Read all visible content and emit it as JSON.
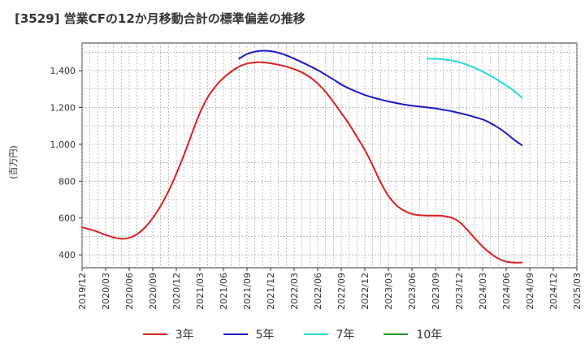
{
  "title": "[3529]  営業CFの12か月移動合計の標準偏差の推移",
  "chart_data": {
    "type": "line",
    "title": "[3529]  営業CFの12か月移動合計の標準偏差の推移",
    "ylabel": "(百万円)",
    "xlabel": "",
    "ylim": [
      330,
      1550
    ],
    "yticks": [
      400,
      600,
      800,
      1000,
      1200,
      1400
    ],
    "ytick_labels": [
      "400",
      "600",
      "800",
      "1,000",
      "1,200",
      "1,400"
    ],
    "xticks": [
      "2019/12",
      "2020/03",
      "2020/06",
      "2020/09",
      "2020/12",
      "2021/03",
      "2021/06",
      "2021/09",
      "2021/12",
      "2022/03",
      "2022/06",
      "2022/09",
      "2022/12",
      "2023/03",
      "2023/06",
      "2023/09",
      "2023/12",
      "2024/03",
      "2024/06",
      "2024/09",
      "2024/12",
      "2025/03"
    ],
    "x_range": [
      "2019/12",
      "2025/03"
    ],
    "grid": true,
    "legend_position": "bottom",
    "series": [
      {
        "name": "3年",
        "color": "#dd1f1f",
        "points": [
          [
            "2019/12",
            550
          ],
          [
            "2020/01",
            538
          ],
          [
            "2020/02",
            525
          ],
          [
            "2020/03",
            508
          ],
          [
            "2020/04",
            495
          ],
          [
            "2020/05",
            487
          ],
          [
            "2020/06",
            492
          ],
          [
            "2020/07",
            512
          ],
          [
            "2020/08",
            548
          ],
          [
            "2020/09",
            600
          ],
          [
            "2020/10",
            665
          ],
          [
            "2020/11",
            745
          ],
          [
            "2020/12",
            840
          ],
          [
            "2021/01",
            945
          ],
          [
            "2021/02",
            1060
          ],
          [
            "2021/03",
            1170
          ],
          [
            "2021/04",
            1255
          ],
          [
            "2021/05",
            1315
          ],
          [
            "2021/06",
            1360
          ],
          [
            "2021/07",
            1395
          ],
          [
            "2021/08",
            1422
          ],
          [
            "2021/09",
            1438
          ],
          [
            "2021/10",
            1445
          ],
          [
            "2021/11",
            1445
          ],
          [
            "2021/12",
            1440
          ],
          [
            "2022/01",
            1432
          ],
          [
            "2022/02",
            1422
          ],
          [
            "2022/03",
            1408
          ],
          [
            "2022/04",
            1390
          ],
          [
            "2022/05",
            1365
          ],
          [
            "2022/06",
            1330
          ],
          [
            "2022/07",
            1285
          ],
          [
            "2022/08",
            1230
          ],
          [
            "2022/09",
            1170
          ],
          [
            "2022/10",
            1110
          ],
          [
            "2022/11",
            1040
          ],
          [
            "2022/12",
            970
          ],
          [
            "2023/01",
            885
          ],
          [
            "2023/02",
            795
          ],
          [
            "2023/03",
            720
          ],
          [
            "2023/04",
            670
          ],
          [
            "2023/05",
            640
          ],
          [
            "2023/06",
            622
          ],
          [
            "2023/07",
            615
          ],
          [
            "2023/08",
            613
          ],
          [
            "2023/09",
            613
          ],
          [
            "2023/10",
            611
          ],
          [
            "2023/11",
            602
          ],
          [
            "2023/12",
            580
          ],
          [
            "2024/01",
            538
          ],
          [
            "2024/02",
            490
          ],
          [
            "2024/03",
            445
          ],
          [
            "2024/04",
            408
          ],
          [
            "2024/05",
            380
          ],
          [
            "2024/06",
            363
          ],
          [
            "2024/07",
            358
          ],
          [
            "2024/08",
            358
          ]
        ]
      },
      {
        "name": "5年",
        "color": "#1a1ac8",
        "points": [
          [
            "2021/08",
            1465
          ],
          [
            "2021/09",
            1490
          ],
          [
            "2021/10",
            1503
          ],
          [
            "2021/11",
            1508
          ],
          [
            "2021/12",
            1506
          ],
          [
            "2022/01",
            1497
          ],
          [
            "2022/02",
            1483
          ],
          [
            "2022/03",
            1465
          ],
          [
            "2022/04",
            1445
          ],
          [
            "2022/05",
            1425
          ],
          [
            "2022/06",
            1403
          ],
          [
            "2022/07",
            1378
          ],
          [
            "2022/08",
            1352
          ],
          [
            "2022/09",
            1325
          ],
          [
            "2022/10",
            1303
          ],
          [
            "2022/11",
            1285
          ],
          [
            "2022/12",
            1268
          ],
          [
            "2023/01",
            1255
          ],
          [
            "2023/02",
            1243
          ],
          [
            "2023/03",
            1233
          ],
          [
            "2023/04",
            1224
          ],
          [
            "2023/05",
            1216
          ],
          [
            "2023/06",
            1210
          ],
          [
            "2023/07",
            1205
          ],
          [
            "2023/08",
            1200
          ],
          [
            "2023/09",
            1195
          ],
          [
            "2023/10",
            1187
          ],
          [
            "2023/11",
            1180
          ],
          [
            "2023/12",
            1170
          ],
          [
            "2024/01",
            1160
          ],
          [
            "2024/02",
            1148
          ],
          [
            "2024/03",
            1135
          ],
          [
            "2024/04",
            1115
          ],
          [
            "2024/05",
            1090
          ],
          [
            "2024/06",
            1060
          ],
          [
            "2024/07",
            1025
          ],
          [
            "2024/08",
            995
          ]
        ]
      },
      {
        "name": "7年",
        "color": "#22dcdc",
        "points": [
          [
            "2023/08",
            1465
          ],
          [
            "2023/09",
            1464
          ],
          [
            "2023/10",
            1461
          ],
          [
            "2023/11",
            1455
          ],
          [
            "2023/12",
            1446
          ],
          [
            "2024/01",
            1432
          ],
          [
            "2024/02",
            1415
          ],
          [
            "2024/03",
            1395
          ],
          [
            "2024/04",
            1372
          ],
          [
            "2024/05",
            1347
          ],
          [
            "2024/06",
            1320
          ],
          [
            "2024/07",
            1290
          ],
          [
            "2024/08",
            1253
          ]
        ]
      },
      {
        "name": "10年",
        "color": "#22962a",
        "points": []
      }
    ]
  }
}
